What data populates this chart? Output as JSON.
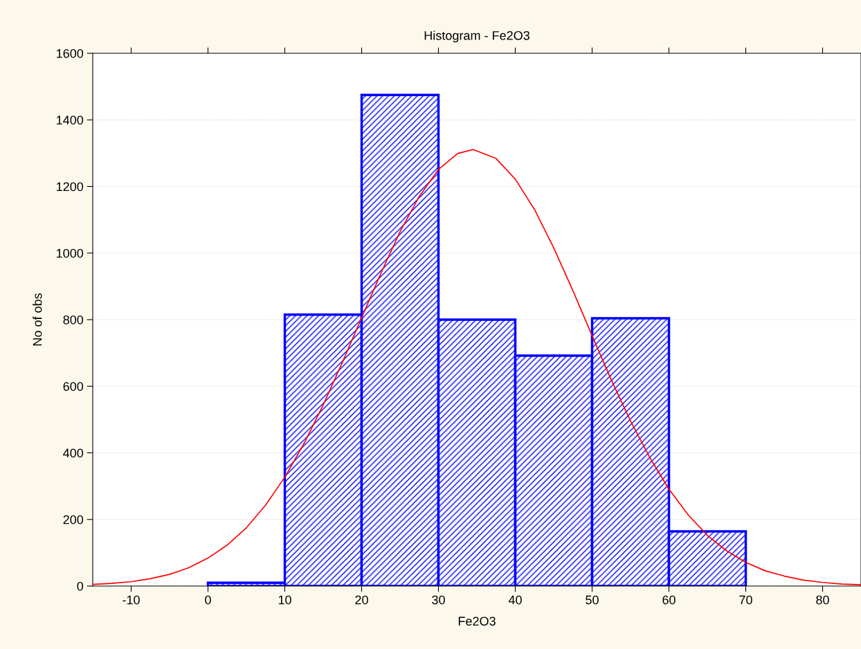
{
  "chart_data": {
    "type": "histogram",
    "title": "Histogram - Fe2O3",
    "xlabel": "Fe2O3",
    "ylabel": "No of obs",
    "xlim": [
      -15,
      85
    ],
    "xticks": [
      -10,
      0,
      10,
      20,
      30,
      40,
      50,
      60,
      70,
      80
    ],
    "ylim": [
      0,
      1600
    ],
    "yticks": [
      0,
      200,
      400,
      600,
      800,
      1000,
      1200,
      1400,
      1600
    ],
    "grid": "y",
    "series": [
      {
        "color": "#0000ff",
        "bins": [
          0,
          10,
          20,
          30,
          40,
          50,
          60,
          70
        ],
        "values": [
          10,
          815,
          1475,
          800,
          692,
          804,
          164
        ]
      },
      {
        "type": "line",
        "color": "#ff0000",
        "x": [
          -15,
          -12.5,
          -10,
          -7.5,
          -5,
          -2.5,
          0,
          2.5,
          5,
          7.5,
          10,
          12.5,
          15,
          17.5,
          20,
          22.5,
          25,
          27.5,
          30,
          32.5,
          34.5,
          37.5,
          40,
          42.5,
          45,
          47.5,
          50,
          52.5,
          55,
          57.5,
          60,
          62.5,
          65,
          67.5,
          70,
          72.5,
          75,
          77.5,
          80,
          82.5,
          85
        ],
        "values": [
          5,
          8,
          13,
          22,
          35,
          55,
          84,
          123,
          175,
          243,
          327,
          428,
          544,
          672,
          806,
          939,
          1064,
          1170,
          1251,
          1299,
          1311,
          1284,
          1222,
          1131,
          1016,
          887,
          752,
          619,
          496,
          386,
          291,
          214,
          152,
          106,
          71,
          46,
          30,
          18,
          11,
          6,
          4
        ]
      }
    ]
  }
}
